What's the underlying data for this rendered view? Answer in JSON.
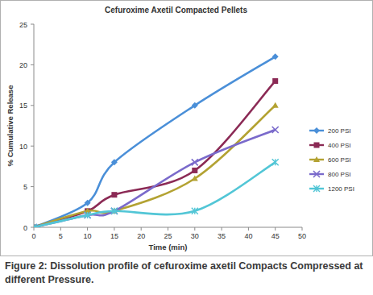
{
  "chart_data": {
    "type": "line",
    "title": "Cefuroxime Axetil Compacted Pellets",
    "x_label": "Time (min)",
    "y_label": "% Cumulative Release",
    "caption": "Figure 2: Dissolution profile of cefuroxime axetil Compacts Compressed at different Pressure.",
    "x": [
      0,
      10,
      15,
      30,
      45
    ],
    "series": [
      {
        "name": "200 PSI",
        "color": "#4a8fd8",
        "marker": "diamond",
        "values": [
          0,
          3,
          8,
          15,
          21
        ]
      },
      {
        "name": "400 PSI",
        "color": "#8b2a55",
        "marker": "square",
        "values": [
          0,
          2,
          4,
          7,
          18
        ]
      },
      {
        "name": "600 PSI",
        "color": "#b3a232",
        "marker": "triangle",
        "values": [
          0,
          2,
          2,
          6,
          15
        ]
      },
      {
        "name": "800 PSI",
        "color": "#7a6acb",
        "marker": "x",
        "values": [
          0,
          1.5,
          2,
          8,
          12
        ]
      },
      {
        "name": "1200 PSI",
        "color": "#52c6d6",
        "marker": "star",
        "values": [
          0,
          1.5,
          2,
          2,
          8
        ]
      }
    ],
    "xlim": [
      0,
      50
    ],
    "xticks": [
      0,
      5,
      10,
      15,
      20,
      25,
      30,
      35,
      40,
      45,
      50
    ],
    "ylim": [
      0,
      25
    ],
    "yticks": [
      0,
      5,
      10,
      15,
      20,
      25
    ],
    "grid": false,
    "legend": "right"
  }
}
